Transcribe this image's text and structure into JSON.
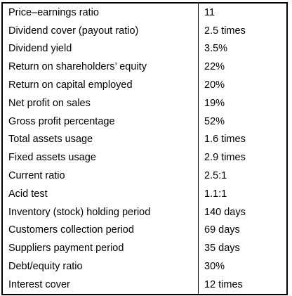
{
  "rows": [
    {
      "label": "Price–earnings ratio",
      "value": "11"
    },
    {
      "label": "Dividend cover (payout ratio)",
      "value": "2.5 times"
    },
    {
      "label": "Dividend yield",
      "value": "3.5%"
    },
    {
      "label": "Return on shareholders’ equity",
      "value": "22%"
    },
    {
      "label": "Return on capital employed",
      "value": "20%"
    },
    {
      "label": "Net profit on sales",
      "value": "19%"
    },
    {
      "label": "Gross profit percentage",
      "value": "52%"
    },
    {
      "label": "Total assets usage",
      "value": "1.6 times"
    },
    {
      "label": "Fixed assets usage",
      "value": "2.9 times"
    },
    {
      "label": "Current ratio",
      "value": "2.5:1"
    },
    {
      "label": "Acid test",
      "value": "1.1:1"
    },
    {
      "label": "Inventory (stock) holding period",
      "value": "140 days"
    },
    {
      "label": "Customers collection period",
      "value": "69 days"
    },
    {
      "label": "Suppliers payment period",
      "value": "35 days"
    },
    {
      "label": "Debt/equity ratio",
      "value": "30%"
    },
    {
      "label": "Interest cover",
      "value": "12 times"
    }
  ]
}
